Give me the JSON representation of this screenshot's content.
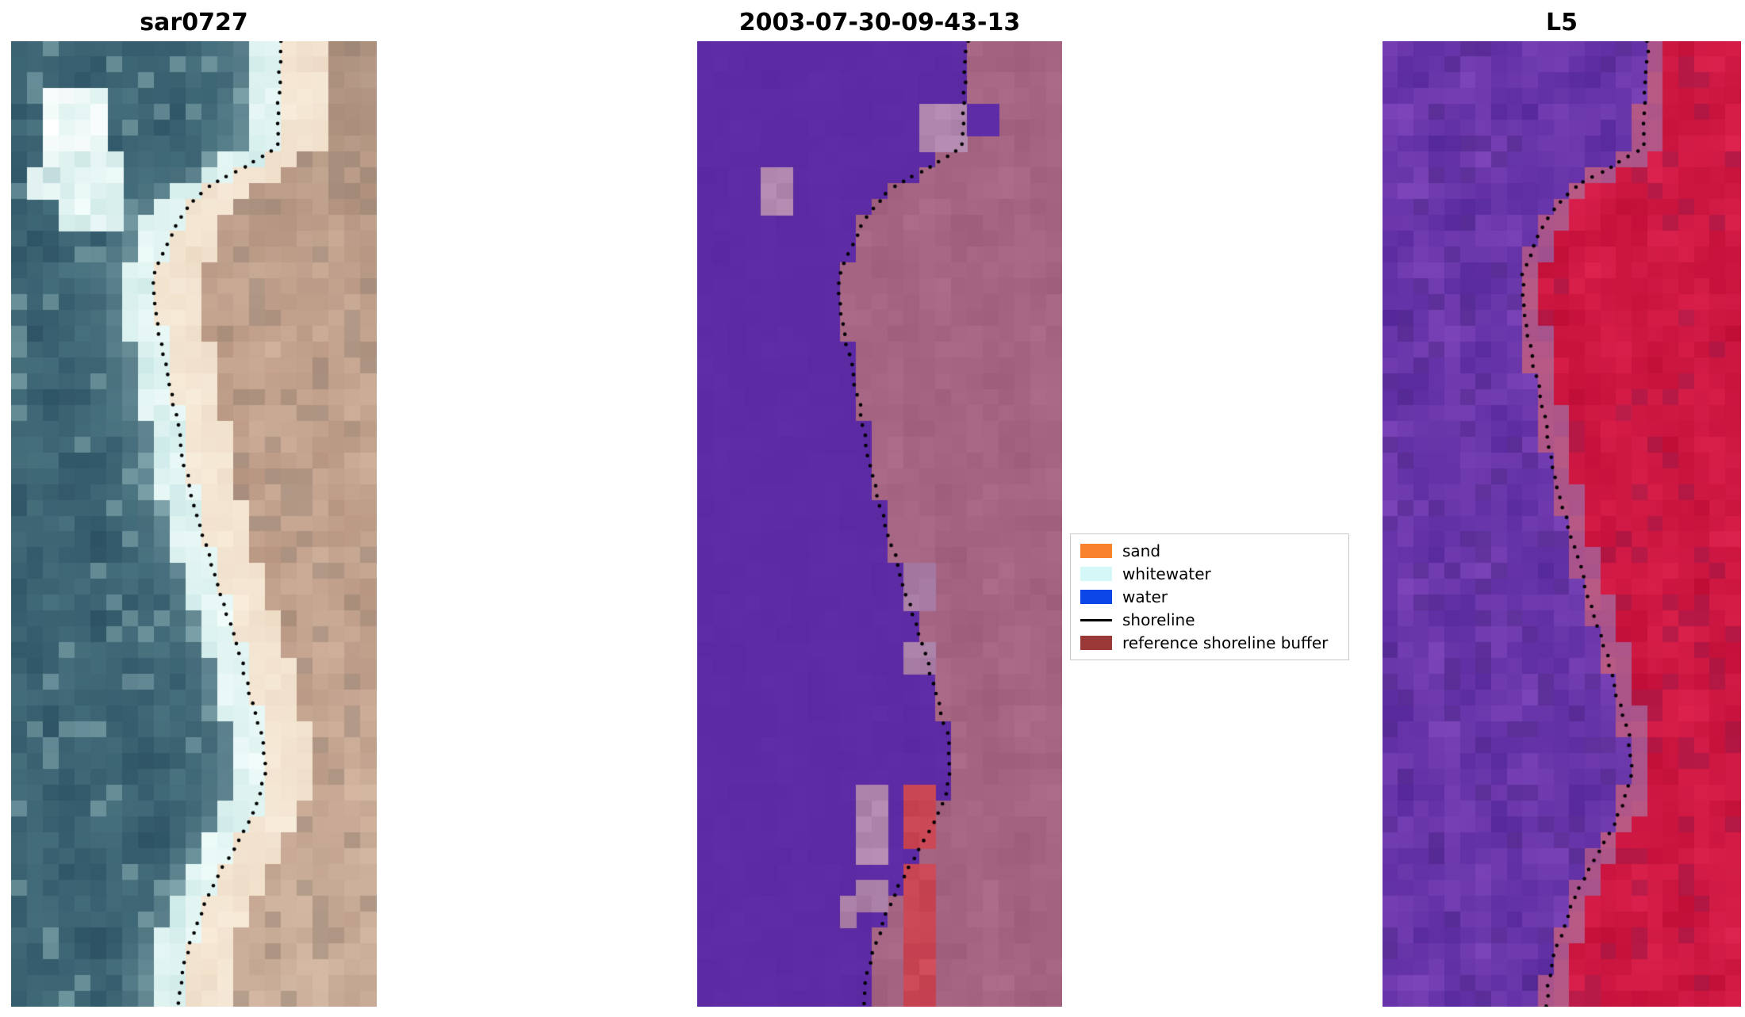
{
  "chart_data": {
    "type": "heatmap",
    "title": "",
    "layout": "three-panel satellite shoreline detection comparison, dotted shoreline overlaid on each panel",
    "panels": [
      {
        "title": "sar0727",
        "kind": "sar",
        "seed": 7,
        "cols": 23,
        "rows": 61,
        "palette": {
          "water1": "#2b5163",
          "water2": "#4e7884",
          "surf1": "#c9e8e6",
          "surf2": "#f6fffd",
          "sand1": "#ecd9c4",
          "sand2": "#f8eddb",
          "dune1": "#b3927e",
          "dune2": "#d5b6a0",
          "dark": "#8a7668"
        },
        "patches": [
          {
            "x": 0.09,
            "y": 0.055,
            "w": 0.18,
            "h": 0.07,
            "c1": "#dff3f0",
            "c2": "#ffffff"
          },
          {
            "x": 0.14,
            "y": 0.115,
            "w": 0.16,
            "h": 0.075,
            "c1": "#cfe9e7",
            "c2": "#f6fffd"
          },
          {
            "x": 0.045,
            "y": 0.125,
            "w": 0.1,
            "h": 0.045,
            "c1": "#b9d6d8",
            "c2": "#e9f7f5"
          }
        ]
      },
      {
        "title": "2003-07-30-09-43-13",
        "kind": "class",
        "seed": 13,
        "cols": 23,
        "rows": 61,
        "palette": {
          "water1": "#5a28a0",
          "water2": "#6331ad",
          "buf1": "#9c5c7a",
          "buf2": "#ae6d8a"
        },
        "patches": [
          {
            "x": 0.625,
            "y": 0.063,
            "w": 0.125,
            "h": 0.056,
            "c1": "#aa7fa8",
            "c2": "#b78fb4"
          },
          {
            "x": 0.757,
            "y": 0.065,
            "w": 0.05,
            "h": 0.03,
            "c1": "#5e2ca6",
            "c2": "#5e2ca6"
          },
          {
            "x": 0.172,
            "y": 0.125,
            "w": 0.105,
            "h": 0.05,
            "c1": "#aa7fa8",
            "c2": "#b78fb4"
          },
          {
            "x": 0.545,
            "y": 0.538,
            "w": 0.095,
            "h": 0.045,
            "c1": "#a2759f",
            "c2": "#ad84aa"
          },
          {
            "x": 0.585,
            "y": 0.62,
            "w": 0.05,
            "h": 0.03,
            "c1": "#a2759f",
            "c2": "#ad84aa"
          },
          {
            "x": 0.425,
            "y": 0.775,
            "w": 0.105,
            "h": 0.08,
            "c1": "#a2759f",
            "c2": "#b78fb4"
          },
          {
            "x": 0.455,
            "y": 0.862,
            "w": 0.05,
            "h": 0.038,
            "c1": "#a2759f",
            "c2": "#ad84aa"
          },
          {
            "x": 0.375,
            "y": 0.885,
            "w": 0.045,
            "h": 0.027,
            "c1": "#a2759f",
            "c2": "#ad84aa"
          },
          {
            "x": 0.555,
            "y": 0.775,
            "w": 0.105,
            "h": 0.065,
            "c1": "#c4404f",
            "c2": "#cc4a58"
          },
          {
            "x": 0.545,
            "y": 0.85,
            "w": 0.12,
            "h": 0.15,
            "c1": "#c23e4e",
            "c2": "#d14f5c"
          }
        ]
      },
      {
        "title": "L5",
        "kind": "l5",
        "seed": 21,
        "cols": 23,
        "rows": 61,
        "palette": {
          "pur1": "#53269a",
          "pur2": "#8148bc",
          "purD": "#451f80",
          "tr1": "#a0508f",
          "tr2": "#bc5b82",
          "red1": "#bf0d36",
          "red2": "#df2450",
          "red3": "#8e1240"
        },
        "patches": []
      }
    ],
    "shoreline_path": [
      [
        0.74,
        0.0
      ],
      [
        0.732,
        0.05
      ],
      [
        0.728,
        0.11
      ],
      [
        0.64,
        0.13
      ],
      [
        0.54,
        0.15
      ],
      [
        0.475,
        0.175
      ],
      [
        0.432,
        0.205
      ],
      [
        0.392,
        0.24
      ],
      [
        0.39,
        0.27
      ],
      [
        0.408,
        0.31
      ],
      [
        0.43,
        0.35
      ],
      [
        0.452,
        0.39
      ],
      [
        0.472,
        0.435
      ],
      [
        0.5,
        0.48
      ],
      [
        0.54,
        0.53
      ],
      [
        0.578,
        0.58
      ],
      [
        0.622,
        0.63
      ],
      [
        0.652,
        0.675
      ],
      [
        0.688,
        0.72
      ],
      [
        0.695,
        0.758
      ],
      [
        0.672,
        0.79
      ],
      [
        0.63,
        0.822
      ],
      [
        0.578,
        0.856
      ],
      [
        0.528,
        0.895
      ],
      [
        0.488,
        0.935
      ],
      [
        0.465,
        0.97
      ],
      [
        0.455,
        1.0
      ]
    ],
    "legend": {
      "items": [
        {
          "label": "sand",
          "color": "#f9822c",
          "swatch": "patch"
        },
        {
          "label": "whitewater",
          "color": "#d4f7f8",
          "swatch": "patch"
        },
        {
          "label": "water",
          "color": "#0a46e8",
          "swatch": "patch"
        },
        {
          "label": "shoreline",
          "color": "#000000",
          "swatch": "line"
        },
        {
          "label": "reference shoreline buffer",
          "color": "#9a3838",
          "swatch": "patch"
        }
      ]
    },
    "shoreline_dot_color": "#000000",
    "background": "#ffffff"
  }
}
